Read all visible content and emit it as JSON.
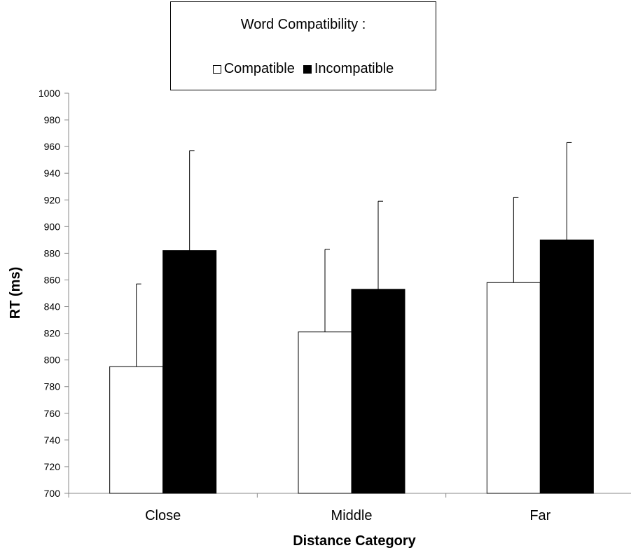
{
  "chart_data": {
    "type": "bar",
    "title": "",
    "xlabel": "Distance Category",
    "ylabel": "RT (ms)",
    "ylim": [
      700,
      1000
    ],
    "yticks": [
      700,
      720,
      740,
      760,
      780,
      800,
      820,
      840,
      860,
      880,
      900,
      920,
      940,
      960,
      980,
      1000
    ],
    "categories": [
      "Close",
      "Middle",
      "Far"
    ],
    "legend": {
      "title": "Word Compatibility :",
      "placement": "top-center"
    },
    "series": [
      {
        "name": "Compatible",
        "color": "#ffffff",
        "values": [
          795,
          821,
          858
        ],
        "error": [
          62,
          62,
          64
        ]
      },
      {
        "name": "Incompatible",
        "color": "#000000",
        "values": [
          882,
          853,
          890
        ],
        "error": [
          75,
          66,
          73
        ]
      }
    ],
    "grid": false
  }
}
